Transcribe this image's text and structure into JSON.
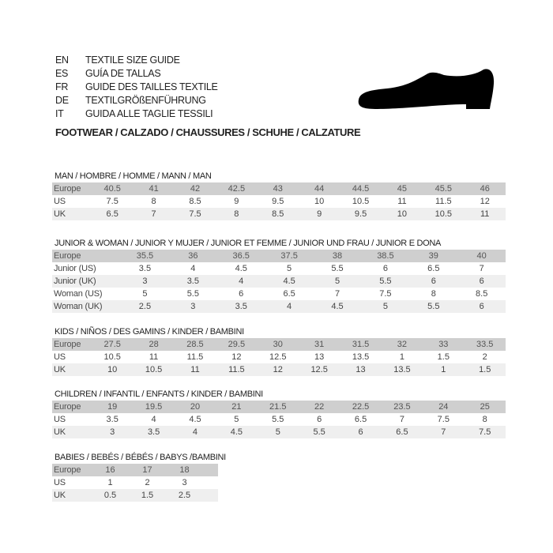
{
  "languages": [
    {
      "code": "EN",
      "text": "TEXTILE SIZE GUIDE"
    },
    {
      "code": "ES",
      "text": "GUÍA DE TALLAS"
    },
    {
      "code": "FR",
      "text": "GUIDE DES TAILLES TEXTILE"
    },
    {
      "code": "DE",
      "text": "TEXTILGRÖßENFÜHRUNG"
    },
    {
      "code": "IT",
      "text": "GUIDA ALLE TAGLIE TESSILI"
    }
  ],
  "footwear_title": "FOOTWEAR / CALZADO / CHAUSSURES / SCHUHE / CALZATURE",
  "shoe_icon": "shoe-silhouette-icon",
  "colors": {
    "header_row": "#cfcfcf",
    "alt_row": "#efefef"
  },
  "sections": [
    {
      "title": "MAN / HOMBRE / HOMME / MANN / MAN",
      "rows": [
        [
          "Europe",
          "40.5",
          "41",
          "42",
          "42.5",
          "43",
          "44",
          "44.5",
          "45",
          "45.5",
          "46"
        ],
        [
          "US",
          "7.5",
          "8",
          "8.5",
          "9",
          "9.5",
          "10",
          "10.5",
          "11",
          "11.5",
          "12"
        ],
        [
          "UK",
          "6.5",
          "7",
          "7.5",
          "8",
          "8.5",
          "9",
          "9.5",
          "10",
          "10.5",
          "11"
        ]
      ]
    },
    {
      "title": "JUNIOR & WOMAN / JUNIOR Y MUJER / JUNIOR ET FEMME / JUNIOR UND FRAU / JUNIOR E DONA",
      "rows": [
        [
          "Europe",
          "35.5",
          "36",
          "36.5",
          "37.5",
          "38",
          "38.5",
          "39",
          "40"
        ],
        [
          "Junior (US)",
          "3.5",
          "4",
          "4.5",
          "5",
          "5.5",
          "6",
          "6.5",
          "7"
        ],
        [
          "Junior (UK)",
          "3",
          "3.5",
          "4",
          "4.5",
          "5",
          "5.5",
          "6",
          "6"
        ],
        [
          "Woman (US)",
          "5",
          "5.5",
          "6",
          "6.5",
          "7",
          "7.5",
          "8",
          "8.5"
        ],
        [
          "Woman (UK)",
          "2.5",
          "3",
          "3.5",
          "4",
          "4.5",
          "5",
          "5.5",
          "6"
        ]
      ]
    },
    {
      "title": "KIDS / NIÑOS / DES GAMINS / KINDER / BAMBINI",
      "rows": [
        [
          "Europe",
          "27.5",
          "28",
          "28.5",
          "29.5",
          "30",
          "31",
          "31.5",
          "32",
          "33",
          "33.5"
        ],
        [
          "US",
          "10.5",
          "11",
          "11.5",
          "12",
          "12.5",
          "13",
          "13.5",
          "1",
          "1.5",
          "2"
        ],
        [
          "UK",
          "10",
          "10.5",
          "11",
          "11.5",
          "12",
          "12.5",
          "13",
          "13.5",
          "1",
          "1.5"
        ]
      ]
    },
    {
      "title": "CHILDREN / INFANTIL / ENFANTS / KINDER / BAMBINI",
      "rows": [
        [
          "Europe",
          "19",
          "19.5",
          "20",
          "21",
          "21.5",
          "22",
          "22.5",
          "23.5",
          "24",
          "25"
        ],
        [
          "US",
          "3.5",
          "4",
          "4.5",
          "5",
          "5.5",
          "6",
          "6.5",
          "7",
          "7.5",
          "8"
        ],
        [
          "UK",
          "3",
          "3.5",
          "4",
          "4.5",
          "5",
          "5.5",
          "6",
          "6.5",
          "7",
          "7.5"
        ]
      ]
    },
    {
      "title": "BABIES  / BEBÉS / BÉBÉS / BABYS /BAMBINI",
      "rows": [
        [
          "Europe",
          "16",
          "17",
          "18"
        ],
        [
          "US",
          "1",
          "2",
          "3"
        ],
        [
          "UK",
          "0.5",
          "1.5",
          "2.5"
        ]
      ]
    }
  ]
}
